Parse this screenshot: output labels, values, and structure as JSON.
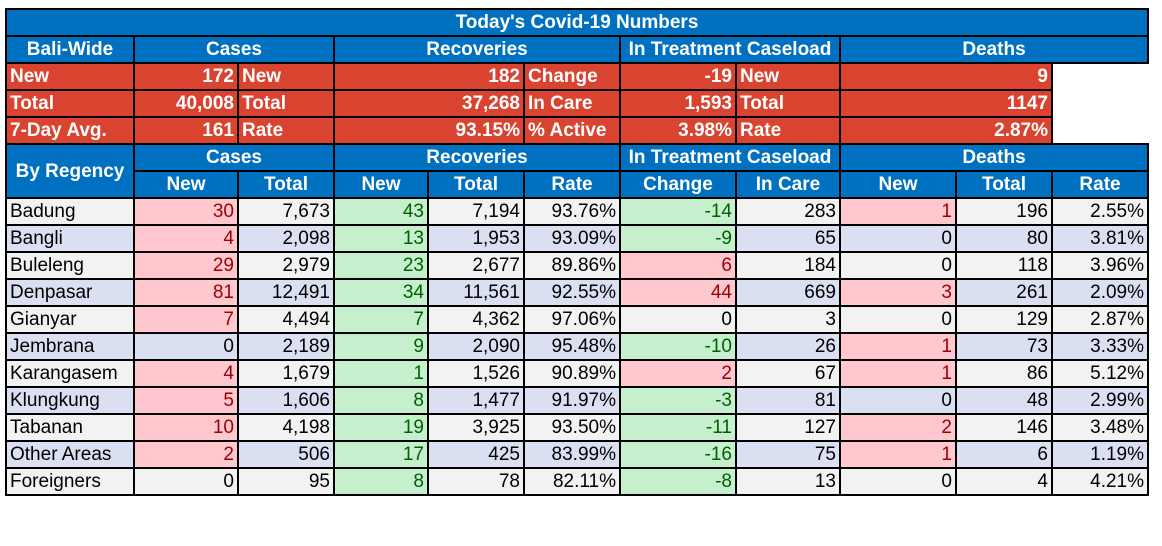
{
  "title": "Today's Covid-19 Numbers",
  "bali_wide": {
    "label": "Bali-Wide",
    "groups": [
      "Cases",
      "Recoveries",
      "In Treatment Caseload",
      "Deaths"
    ],
    "rows": [
      [
        "New",
        "172",
        "New",
        "182",
        "Change",
        "-19",
        "New",
        "9"
      ],
      [
        "Total",
        "40,008",
        "Total",
        "37,268",
        "In Care",
        "1,593",
        "Total",
        "1147"
      ],
      [
        "7-Day Avg.",
        "161",
        "Rate",
        "93.15%",
        "% Active",
        "3.98%",
        "Rate",
        "2.87%"
      ]
    ]
  },
  "by_regency": {
    "label": "By Regency",
    "groups": [
      "Cases",
      "Recoveries",
      "In Treatment Caseload",
      "Deaths"
    ],
    "subheaders": [
      "New",
      "Total",
      "New",
      "Total",
      "Rate",
      "Change",
      "In Care",
      "New",
      "Total",
      "Rate"
    ],
    "rows": [
      {
        "name": "Badung",
        "v": [
          "30",
          "7,673",
          "43",
          "7,194",
          "93.76%",
          "-14",
          "283",
          "1",
          "196",
          "2.55%"
        ]
      },
      {
        "name": "Bangli",
        "v": [
          "4",
          "2,098",
          "13",
          "1,953",
          "93.09%",
          "-9",
          "65",
          "0",
          "80",
          "3.81%"
        ]
      },
      {
        "name": "Buleleng",
        "v": [
          "29",
          "2,979",
          "23",
          "2,677",
          "89.86%",
          "6",
          "184",
          "0",
          "118",
          "3.96%"
        ]
      },
      {
        "name": "Denpasar",
        "v": [
          "81",
          "12,491",
          "34",
          "11,561",
          "92.55%",
          "44",
          "669",
          "3",
          "261",
          "2.09%"
        ]
      },
      {
        "name": "Gianyar",
        "v": [
          "7",
          "4,494",
          "7",
          "4,362",
          "97.06%",
          "0",
          "3",
          "0",
          "129",
          "2.87%"
        ]
      },
      {
        "name": "Jembrana",
        "v": [
          "0",
          "2,189",
          "9",
          "2,090",
          "95.48%",
          "-10",
          "26",
          "1",
          "73",
          "3.33%"
        ]
      },
      {
        "name": "Karangasem",
        "v": [
          "4",
          "1,679",
          "1",
          "1,526",
          "90.89%",
          "2",
          "67",
          "1",
          "86",
          "5.12%"
        ]
      },
      {
        "name": "Klungkung",
        "v": [
          "5",
          "1,606",
          "8",
          "1,477",
          "91.97%",
          "-3",
          "81",
          "0",
          "48",
          "2.99%"
        ]
      },
      {
        "name": "Tabanan",
        "v": [
          "10",
          "4,198",
          "19",
          "3,925",
          "93.50%",
          "-11",
          "127",
          "2",
          "146",
          "3.48%"
        ]
      },
      {
        "name": "Other Areas",
        "v": [
          "2",
          "506",
          "17",
          "425",
          "83.99%",
          "-16",
          "75",
          "1",
          "6",
          "1.19%"
        ]
      },
      {
        "name": "Foreigners",
        "v": [
          "0",
          "95",
          "8",
          "78",
          "82.11%",
          "-8",
          "13",
          "0",
          "4",
          "4.21%"
        ]
      }
    ]
  }
}
